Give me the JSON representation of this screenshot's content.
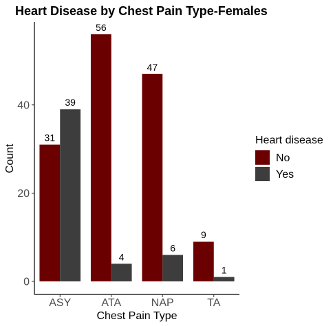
{
  "chart_data": {
    "type": "bar",
    "title": "Heart Disease by Chest Pain Type-Females",
    "xlabel": "Chest Pain Type",
    "ylabel": "Count",
    "categories": [
      "ASY",
      "ATA",
      "NAP",
      "TA"
    ],
    "series": [
      {
        "name": "No",
        "values": [
          31,
          56,
          47,
          9
        ],
        "color": "#6b0000"
      },
      {
        "name": "Yes",
        "values": [
          39,
          4,
          6,
          1
        ],
        "color": "#3d3d3d"
      }
    ],
    "ylim": [
      0,
      58
    ],
    "yticks": [
      0,
      20,
      40
    ],
    "grid": false,
    "legend": {
      "title": "Heart disease",
      "position": "right"
    }
  }
}
